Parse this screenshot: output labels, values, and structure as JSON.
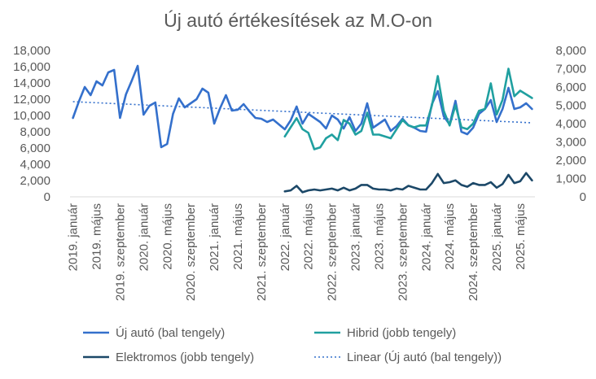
{
  "chart_data": {
    "type": "line",
    "title": "Új autó értékesítések az M.O-on",
    "x": [
      "2019-01",
      "2019-02",
      "2019-03",
      "2019-04",
      "2019-05",
      "2019-06",
      "2019-07",
      "2019-08",
      "2019-09",
      "2019-10",
      "2019-11",
      "2019-12",
      "2020-01",
      "2020-02",
      "2020-03",
      "2020-04",
      "2020-05",
      "2020-06",
      "2020-07",
      "2020-08",
      "2020-09",
      "2020-10",
      "2020-11",
      "2020-12",
      "2021-01",
      "2021-02",
      "2021-03",
      "2021-04",
      "2021-05",
      "2021-06",
      "2021-07",
      "2021-08",
      "2021-09",
      "2021-10",
      "2021-11",
      "2021-12",
      "2022-01",
      "2022-02",
      "2022-03",
      "2022-04",
      "2022-05",
      "2022-06",
      "2022-07",
      "2022-08",
      "2022-09",
      "2022-10",
      "2022-11",
      "2022-12",
      "2023-01",
      "2023-02",
      "2023-03",
      "2023-04",
      "2023-05",
      "2023-06",
      "2023-07",
      "2023-08",
      "2023-09",
      "2023-10",
      "2023-11",
      "2023-12",
      "2024-01",
      "2024-02",
      "2024-03",
      "2024-04",
      "2024-05",
      "2024-06",
      "2024-07",
      "2024-08",
      "2024-09",
      "2024-10",
      "2024-11",
      "2024-12",
      "2025-01",
      "2025-02",
      "2025-03",
      "2025-04",
      "2025-05",
      "2025-06",
      "2025-07"
    ],
    "category_labels": [
      "2019. január",
      "2019. május",
      "2019. szeptember",
      "2020. január",
      "2020. május",
      "2020. szeptember",
      "2021. január",
      "2021. május",
      "2021. szeptember",
      "2022. január",
      "2022. május",
      "2022. szeptember",
      "2023. január",
      "2023. május",
      "2023. szeptember",
      "2024. január",
      "2024. május",
      "2024. szeptember",
      "2025. január",
      "2025. május"
    ],
    "y_left": {
      "ylim": [
        0,
        18000
      ],
      "ticks": [
        "0",
        "2,000",
        "4,000",
        "6,000",
        "8,000",
        "10,000",
        "12,000",
        "14,000",
        "16,000",
        "18,000"
      ]
    },
    "y_right": {
      "ylim": [
        0,
        8000
      ],
      "ticks": [
        "0",
        "1,000",
        "2,000",
        "3,000",
        "4,000",
        "5,000",
        "6,000",
        "7,000",
        "8,000"
      ]
    },
    "series": [
      {
        "name": "Új autó (bal tengely)",
        "axis": "left",
        "color": "#3470cc",
        "values": [
          9700,
          11700,
          13500,
          12500,
          14200,
          13700,
          15300,
          15600,
          9700,
          12600,
          14300,
          16100,
          10100,
          11200,
          11600,
          6100,
          6500,
          10200,
          12100,
          11000,
          11500,
          12000,
          13300,
          12800,
          9000,
          10900,
          12500,
          10600,
          10700,
          11400,
          10500,
          9700,
          9600,
          9200,
          9500,
          8900,
          8300,
          9400,
          11100,
          9000,
          10200,
          9700,
          9200,
          8400,
          10000,
          9500,
          8400,
          9800,
          8100,
          9000,
          11500,
          8500,
          9000,
          9500,
          8100,
          8700,
          9600,
          8800,
          8500,
          8100,
          8000,
          11400,
          13000,
          9900,
          8900,
          11800,
          8000,
          7700,
          8500,
          10200,
          10800,
          11900,
          9200,
          10800,
          13400,
          10800,
          11000,
          11500,
          10800
        ]
      },
      {
        "name": "Hibrid (jobb tengely)",
        "axis": "right",
        "color": "#20a0a0",
        "values": [
          null,
          null,
          null,
          null,
          null,
          null,
          null,
          null,
          null,
          null,
          null,
          null,
          null,
          null,
          null,
          null,
          null,
          null,
          null,
          null,
          null,
          null,
          null,
          null,
          null,
          null,
          null,
          null,
          null,
          null,
          null,
          null,
          null,
          null,
          null,
          null,
          3300,
          3800,
          4300,
          3700,
          3500,
          2600,
          2700,
          3200,
          3400,
          3100,
          4200,
          4000,
          3400,
          3600,
          4600,
          3400,
          3400,
          3300,
          3200,
          3700,
          4200,
          3900,
          3800,
          3900,
          3900,
          5000,
          6600,
          4700,
          3900,
          5000,
          3800,
          3700,
          4000,
          4700,
          4800,
          6200,
          4500,
          5300,
          7000,
          5500,
          5800,
          5600,
          5400
        ]
      },
      {
        "name": "Elektromos (jobb tengely)",
        "axis": "right",
        "color": "#1c4868",
        "values": [
          null,
          null,
          null,
          null,
          null,
          null,
          null,
          null,
          null,
          null,
          null,
          null,
          null,
          null,
          null,
          null,
          null,
          null,
          null,
          null,
          null,
          null,
          null,
          null,
          null,
          null,
          null,
          null,
          null,
          null,
          null,
          null,
          null,
          null,
          null,
          null,
          300,
          350,
          600,
          250,
          350,
          400,
          350,
          400,
          450,
          350,
          500,
          350,
          450,
          650,
          650,
          450,
          400,
          400,
          350,
          450,
          400,
          600,
          500,
          400,
          400,
          750,
          1250,
          750,
          800,
          900,
          650,
          550,
          750,
          650,
          650,
          800,
          500,
          700,
          1200,
          750,
          850,
          1300,
          900
        ]
      },
      {
        "name": "Linear (Új autó (bal tengely))",
        "axis": "left",
        "color": "#3470cc",
        "dashed": true,
        "trend": [
          11700,
          9100
        ]
      }
    ],
    "legend_position": "bottom",
    "grid": false
  }
}
